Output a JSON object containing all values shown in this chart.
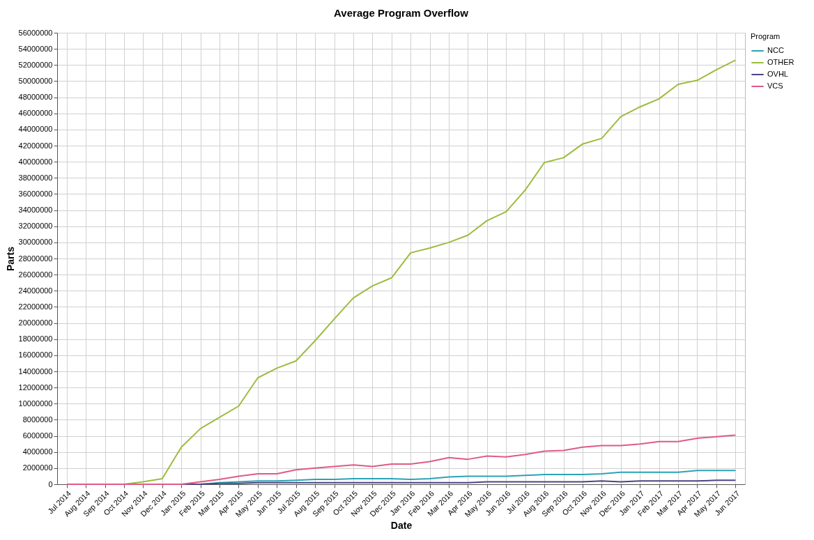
{
  "chart_data": {
    "type": "line",
    "title": "Average Program Overflow",
    "xlabel": "Date",
    "ylabel": "Parts",
    "legend_title": "Program",
    "categories": [
      "Jul 2014",
      "Aug 2014",
      "Sep 2014",
      "Oct 2014",
      "Nov 2014",
      "Dec 2014",
      "Jan 2015",
      "Feb 2015",
      "Mar 2015",
      "Apr 2015",
      "May 2015",
      "Jun 2015",
      "Jul 2015",
      "Aug 2015",
      "Sep 2015",
      "Oct 2015",
      "Nov 2015",
      "Dec 2015",
      "Jan 2016",
      "Feb 2016",
      "Mar 2016",
      "Apr 2016",
      "May 2016",
      "Jun 2016",
      "Jul 2016",
      "Aug 2016",
      "Sep 2016",
      "Oct 2016",
      "Nov 2016",
      "Dec 2016",
      "Jan 2017",
      "Feb 2017",
      "Mar 2017",
      "Apr 2017",
      "May 2017",
      "Jun 2017"
    ],
    "series": [
      {
        "name": "NCC",
        "color": "#2aa3b5",
        "values": [
          null,
          null,
          null,
          null,
          null,
          null,
          0,
          0,
          200000,
          300000,
          400000,
          400000,
          500000,
          600000,
          600000,
          700000,
          700000,
          700000,
          600000,
          700000,
          900000,
          1000000,
          1000000,
          1000000,
          1100000,
          1200000,
          1200000,
          1200000,
          1300000,
          1500000,
          1500000,
          1500000,
          1500000,
          1700000,
          1700000,
          1700000
        ]
      },
      {
        "name": "OTHER",
        "color": "#9cbb3e",
        "values": [
          null,
          null,
          null,
          0,
          300000,
          700000,
          4600000,
          6900000,
          8300000,
          9700000,
          13200000,
          14400000,
          15300000,
          17800000,
          20500000,
          23100000,
          24600000,
          25600000,
          28700000,
          29300000,
          30000000,
          30900000,
          32700000,
          33800000,
          36500000,
          39900000,
          40500000,
          42200000,
          42900000,
          45600000,
          46800000,
          47800000,
          49600000,
          50100000,
          51400000,
          52600000
        ]
      },
      {
        "name": "OVHL",
        "color": "#4b4680",
        "values": [
          null,
          null,
          null,
          null,
          null,
          null,
          0,
          0,
          100000,
          100000,
          200000,
          200000,
          200000,
          200000,
          200000,
          200000,
          200000,
          200000,
          200000,
          200000,
          200000,
          200000,
          300000,
          300000,
          300000,
          300000,
          300000,
          300000,
          400000,
          300000,
          400000,
          400000,
          400000,
          400000,
          500000,
          500000
        ]
      },
      {
        "name": "VCS",
        "color": "#e05a85",
        "values": [
          0,
          0,
          0,
          0,
          0,
          0,
          0,
          300000,
          600000,
          1000000,
          1300000,
          1300000,
          1800000,
          2000000,
          2200000,
          2400000,
          2200000,
          2500000,
          2500000,
          2800000,
          3300000,
          3100000,
          3500000,
          3400000,
          3700000,
          4100000,
          4200000,
          4600000,
          4800000,
          4800000,
          5000000,
          5300000,
          5300000,
          5700000,
          5900000,
          6100000
        ]
      }
    ],
    "ylim": [
      0,
      56000000
    ],
    "yticks": [
      0,
      2000000,
      4000000,
      6000000,
      8000000,
      10000000,
      12000000,
      14000000,
      16000000,
      18000000,
      20000000,
      22000000,
      24000000,
      26000000,
      28000000,
      30000000,
      32000000,
      34000000,
      36000000,
      38000000,
      40000000,
      42000000,
      44000000,
      46000000,
      48000000,
      50000000,
      52000000,
      54000000,
      56000000
    ],
    "grid": true,
    "legend": "right",
    "marker": "none",
    "line_style": "solid"
  }
}
